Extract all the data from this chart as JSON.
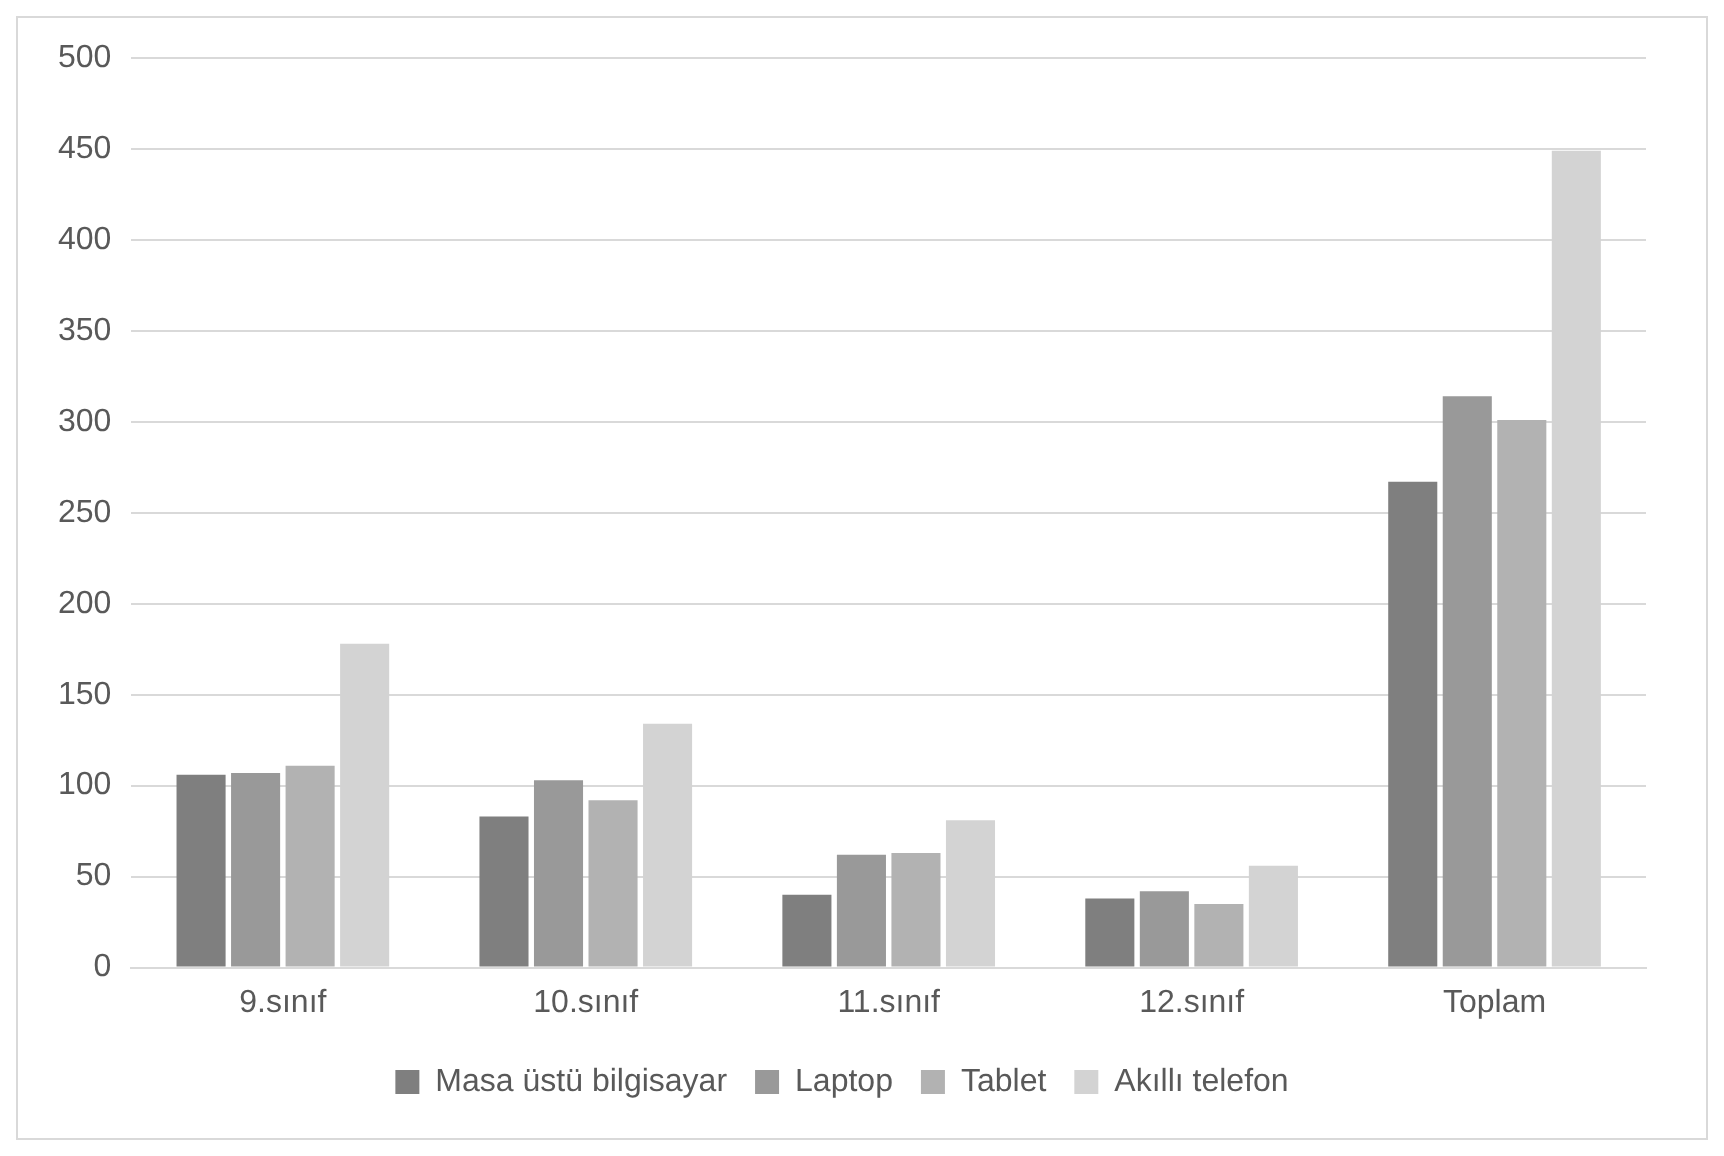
{
  "chart_data": {
    "type": "bar",
    "categories": [
      "9.sınıf",
      "10.sınıf",
      "11.sınıf",
      "12.sınıf",
      "Toplam"
    ],
    "series": [
      {
        "name": "Masa üstü bilgisayar",
        "color": "#7f7f7f",
        "values": [
          106,
          83,
          40,
          38,
          267
        ]
      },
      {
        "name": "Laptop",
        "color": "#999999",
        "values": [
          107,
          103,
          62,
          42,
          314
        ]
      },
      {
        "name": "Tablet",
        "color": "#b2b2b2",
        "values": [
          111,
          92,
          63,
          35,
          301
        ]
      },
      {
        "name": "Akıllı telefon",
        "color": "#d3d3d3",
        "values": [
          178,
          134,
          81,
          56,
          449
        ]
      }
    ],
    "ylim": [
      0,
      500
    ],
    "yticks": [
      0,
      50,
      100,
      150,
      200,
      250,
      300,
      350,
      400,
      450,
      500
    ],
    "grid": "y",
    "legend": "bottom"
  }
}
